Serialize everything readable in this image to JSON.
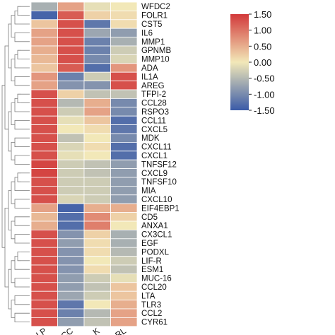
{
  "chart_data": {
    "type": "heatmap",
    "title": "",
    "columns": [
      "LP",
      "CC",
      "K",
      "RL"
    ],
    "rows": [
      "WFDC2",
      "FOLR1",
      "CST5",
      "IL6",
      "MMP1",
      "GPNMB",
      "MMP10",
      "ADA",
      "IL1A",
      "AREG",
      "TFPI-2",
      "CCL28",
      "RSPO3",
      "CCL11",
      "CXCL5",
      "MDK",
      "CXCL11",
      "CXCL1",
      "TNFSF12",
      "CXCL9",
      "TNFSF10",
      "MIA",
      "CXCL10",
      "EIF4EBP1",
      "CD5",
      "ANXA1",
      "CX3CL1",
      "EGF",
      "PODXL",
      "LIF-R",
      "ESM1",
      "MUC-16",
      "CCL20",
      "LTA",
      "TLR3",
      "CCL2",
      "CYR61"
    ],
    "values": [
      [
        -0.6,
        0.6,
        -0.1,
        0.0
      ],
      [
        -1.4,
        1.2,
        0.2,
        0.1
      ],
      [
        0.3,
        1.3,
        -1.2,
        0.1
      ],
      [
        0.6,
        1.3,
        -0.7,
        -0.8
      ],
      [
        0.6,
        1.3,
        -1.1,
        -0.6
      ],
      [
        0.5,
        1.3,
        -1.1,
        -0.3
      ],
      [
        0.4,
        1.3,
        -1.0,
        -0.2
      ],
      [
        0.3,
        1.2,
        -1.3,
        0.7
      ],
      [
        0.7,
        -1.1,
        -0.3,
        1.3
      ],
      [
        0.6,
        -0.9,
        -0.9,
        1.3
      ],
      [
        1.3,
        0.2,
        -0.4,
        -0.4
      ],
      [
        1.3,
        -0.5,
        0.5,
        -1.0
      ],
      [
        1.3,
        -0.3,
        0.6,
        -1.0
      ],
      [
        1.3,
        -0.1,
        0.3,
        -1.3
      ],
      [
        1.3,
        0.0,
        0.1,
        -1.2
      ],
      [
        1.3,
        -0.4,
        0.0,
        -1.0
      ],
      [
        1.3,
        -0.2,
        0.1,
        -1.3
      ],
      [
        1.3,
        -0.1,
        0.0,
        -1.3
      ],
      [
        1.4,
        -0.3,
        -0.4,
        -0.8
      ],
      [
        1.4,
        -0.3,
        -0.4,
        -0.8
      ],
      [
        1.3,
        -0.3,
        -0.3,
        -0.8
      ],
      [
        1.3,
        -0.3,
        -0.3,
        -0.8
      ],
      [
        1.3,
        -0.2,
        -0.3,
        -0.8
      ],
      [
        0.6,
        -1.4,
        0.5,
        0.5
      ],
      [
        0.4,
        -1.3,
        0.8,
        0.2
      ],
      [
        0.5,
        -1.3,
        0.9,
        0.0
      ],
      [
        1.3,
        -0.9,
        0.2,
        -0.6
      ],
      [
        1.3,
        -0.8,
        0.1,
        -0.6
      ],
      [
        1.3,
        -0.9,
        0.1,
        -0.5
      ],
      [
        1.3,
        -0.9,
        0.0,
        -0.3
      ],
      [
        1.3,
        -0.9,
        0.1,
        -0.4
      ],
      [
        1.3,
        -0.8,
        -0.3,
        -0.1
      ],
      [
        1.3,
        -0.8,
        -0.4,
        0.3
      ],
      [
        1.3,
        -0.7,
        -0.3,
        0.3
      ],
      [
        1.3,
        -1.2,
        0.0,
        0.5
      ],
      [
        1.3,
        -1.1,
        -0.5,
        0.6
      ],
      [
        1.3,
        -0.8,
        -0.4,
        0.6
      ]
    ],
    "colorbar": {
      "min": -1.5,
      "max": 1.5,
      "ticks": [
        "1.50",
        "1.00",
        "0.50",
        "0.00",
        "-0.50",
        "-1.00",
        "-1.50"
      ],
      "colors": [
        "#3a5ba8",
        "#f2e8b8",
        "#d2393a"
      ]
    }
  }
}
